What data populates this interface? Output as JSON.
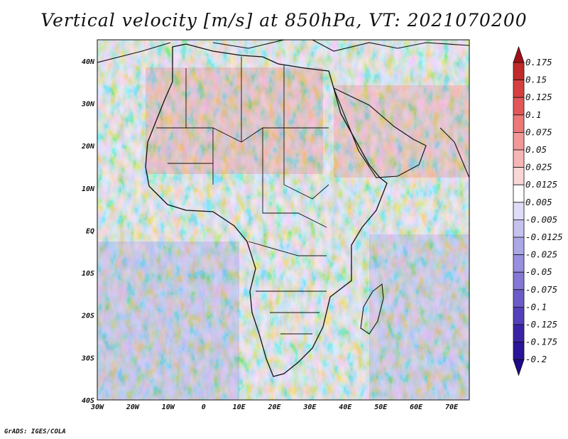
{
  "title": "Vertical velocity [m/s] at 850hPa, VT: 2021070200",
  "footer": "GrADS: IGES/COLA",
  "map": {
    "region": "Africa",
    "lon_range": [
      -30,
      75
    ],
    "lat_range": [
      -40,
      45
    ],
    "lon_ticks": [
      "30W",
      "20W",
      "10W",
      "0",
      "10E",
      "20E",
      "30E",
      "40E",
      "50E",
      "60E",
      "70E"
    ],
    "lat_ticks": [
      "40S",
      "30S",
      "20S",
      "10S",
      "EQ",
      "10N",
      "20N",
      "30N",
      "40N"
    ]
  },
  "colorbar": {
    "labels": [
      "0.175",
      "0.15",
      "0.125",
      "0.1",
      "0.075",
      "0.05",
      "0.025",
      "0.0125",
      "0.005",
      "-0.005",
      "-0.0125",
      "-0.025",
      "-0.05",
      "-0.075",
      "-0.1",
      "-0.125",
      "-0.175",
      "-0.2"
    ],
    "colors": [
      "#a01018",
      "#c02a2a",
      "#d64040",
      "#e25858",
      "#ec7878",
      "#f29898",
      "#f7b6b6",
      "#fbd6d6",
      "#ffffff",
      "#dedcf6",
      "#c6c2ee",
      "#aca8e6",
      "#9890de",
      "#8478d4",
      "#6c5cc8",
      "#5440b8",
      "#3a24a4",
      "#2a1498",
      "#1c0a88"
    ]
  }
}
